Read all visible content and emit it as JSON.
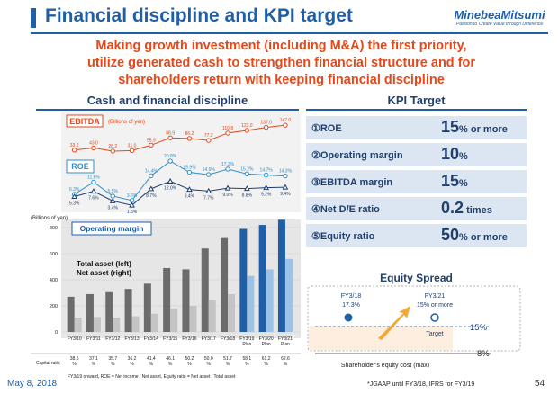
{
  "header": {
    "title": "Financial discipline and KPI target",
    "logo": "MinebeaMitsumi",
    "logo_tagline": "Passion to Create Value through Difference"
  },
  "headline": {
    "line1": "Making growth investment (including M&A) the first priority,",
    "line2": "utilize generated cash to strengthen financial structure and for",
    "line3": "shareholders return with keeping financial discipline"
  },
  "left_section": {
    "title": "Cash and financial discipline"
  },
  "kpi": {
    "title": "KPI Target",
    "rows": [
      {
        "label": "①ROE",
        "value": "15",
        "suffix": "% or more"
      },
      {
        "label": "②Operating margin",
        "value": "10",
        "suffix": "%"
      },
      {
        "label": "③EBITDA margin",
        "value": "15",
        "suffix": "%"
      },
      {
        "label": "④Net D/E ratio",
        "value": "0.2",
        "suffix": " times"
      },
      {
        "label": "⑤Equity ratio",
        "value": "50",
        "suffix": "% or more"
      }
    ]
  },
  "equity_spread": {
    "title": "Equity Spread",
    "fy18_label": "FY3/18",
    "fy18_value": "17.3%",
    "fy21_label": "FY3/21",
    "fy21_value": "15% or more",
    "target_label": "Target",
    "roe_target": "15%",
    "cost_value": "8%",
    "cost_label": "Shareholder's equity cost (max)"
  },
  "footer": {
    "date": "May 8, 2018",
    "page": "54",
    "note": "*JGAAP until FY3/18, IFRS for FY3/19"
  },
  "chart_data": {
    "type": "bar",
    "categories": [
      "FY3/10",
      "FY3/11",
      "FY3/12",
      "FY3/13",
      "FY3/14",
      "FY3/15",
      "FY3/16",
      "FY3/17",
      "FY3/18",
      "FY3/19 Plan",
      "FY3/20 Plan",
      "FY3/21 Plan"
    ],
    "ebitda": {
      "label": "EBITDA",
      "unit": "(Billions of yen)",
      "values": [
        33.2,
        43.0,
        28.2,
        31.0,
        55.9,
        88.9,
        86.2,
        77.2,
        110.8,
        123.0,
        137.0,
        147.0
      ]
    },
    "roe": {
      "label": "ROE",
      "values": [
        6.3,
        11.6,
        5.5,
        3.6,
        14.4,
        20.8,
        15.9,
        14.9,
        17.3,
        15.2,
        14.7,
        14.3
      ]
    },
    "op_margin": {
      "label": "Operating margin",
      "values": [
        5.3,
        7.6,
        3.4,
        1.5,
        8.7,
        12.0,
        8.4,
        7.7,
        9.0,
        8.8,
        9.2,
        9.4
      ]
    },
    "bars": {
      "unit": "(Billions of yen)",
      "total_asset_label": "Total asset (left)",
      "net_asset_label": "Net asset (right)",
      "total_asset": [
        270,
        290,
        305,
        330,
        370,
        490,
        480,
        640,
        720,
        790,
        820,
        860
      ],
      "net_asset": [
        110,
        115,
        110,
        120,
        140,
        180,
        200,
        245,
        290,
        430,
        480,
        560
      ],
      "ylim": [
        0,
        800
      ],
      "yticks": [
        "0",
        "200",
        "400",
        "600",
        "800"
      ]
    },
    "capital_ratio": {
      "label": "Capital ratio",
      "values": [
        "38.5%",
        "37.1%",
        "35.7%",
        "36.2%",
        "41.4%",
        "46.1%",
        "50.2%",
        "50.0%",
        "51.7%",
        "58.1%",
        "61.2%",
        "62.6%"
      ]
    },
    "footnote": "FY3/19 onward,  ROE = Net income / Net asset, Equity ratio = Net asset / Total asset"
  }
}
